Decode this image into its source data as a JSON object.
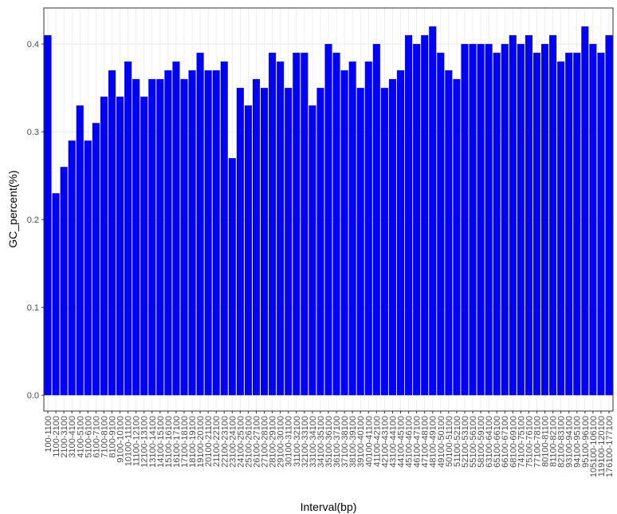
{
  "chart_data": {
    "type": "bar",
    "x_label": "Interval(bp)",
    "y_label": "GC_percent(%)",
    "categories": [
      "100-1100",
      "1100-2100",
      "2100-3100",
      "3100-4100",
      "4100-5100",
      "5100-6100",
      "6100-7100",
      "7100-8100",
      "8100-9100",
      "9100-10100",
      "10100-11100",
      "11100-12100",
      "12100-13100",
      "13100-14100",
      "14100-15100",
      "15100-16100",
      "16100-17100",
      "17100-18100",
      "18100-19100",
      "19100-20100",
      "20100-21100",
      "21100-22100",
      "22100-23100",
      "23100-24100",
      "24100-25100",
      "25100-26100",
      "26100-27100",
      "27100-28100",
      "28100-29100",
      "29100-30100",
      "30100-31100",
      "31100-32100",
      "32100-33100",
      "33100-34100",
      "34100-35100",
      "35100-36100",
      "36100-37100",
      "37100-38100",
      "38100-39100",
      "39100-40100",
      "40100-41100",
      "41100-42100",
      "42100-43100",
      "43100-44100",
      "44100-45100",
      "45100-46100",
      "46100-47100",
      "47100-48100",
      "48100-49100",
      "49100-50100",
      "50100-51100",
      "51100-52100",
      "52100-53100",
      "55100-56100",
      "58100-59100",
      "63100-64100",
      "65100-66100",
      "66100-67100",
      "68100-69100",
      "74100-75100",
      "75100-76100",
      "77100-78100",
      "80100-81100",
      "81100-82100",
      "82100-83100",
      "93100-94100",
      "94100-95100",
      "95100-96100",
      "105100-106100",
      "119100-120100",
      "176100-177100"
    ],
    "values": [
      0.41,
      0.23,
      0.26,
      0.29,
      0.33,
      0.29,
      0.31,
      0.34,
      0.37,
      0.34,
      0.38,
      0.36,
      0.34,
      0.36,
      0.36,
      0.37,
      0.38,
      0.36,
      0.37,
      0.39,
      0.37,
      0.37,
      0.38,
      0.27,
      0.35,
      0.33,
      0.36,
      0.35,
      0.39,
      0.38,
      0.35,
      0.39,
      0.39,
      0.33,
      0.35,
      0.4,
      0.39,
      0.37,
      0.38,
      0.35,
      0.38,
      0.4,
      0.35,
      0.36,
      0.37,
      0.41,
      0.4,
      0.41,
      0.42,
      0.39,
      0.37,
      0.36,
      0.4,
      0.4,
      0.4,
      0.4,
      0.39,
      0.4,
      0.41,
      0.4,
      0.41,
      0.39,
      0.4,
      0.41,
      0.38,
      0.39,
      0.39,
      0.42,
      0.4,
      0.39,
      0.41
    ],
    "color": "#0000ff",
    "ylim": [
      -0.018,
      0.441
    ],
    "yticks": [
      {
        "value": 0,
        "label": "0.0"
      },
      0.1,
      0.2,
      0.3,
      0.4
    ],
    "grid": true
  }
}
